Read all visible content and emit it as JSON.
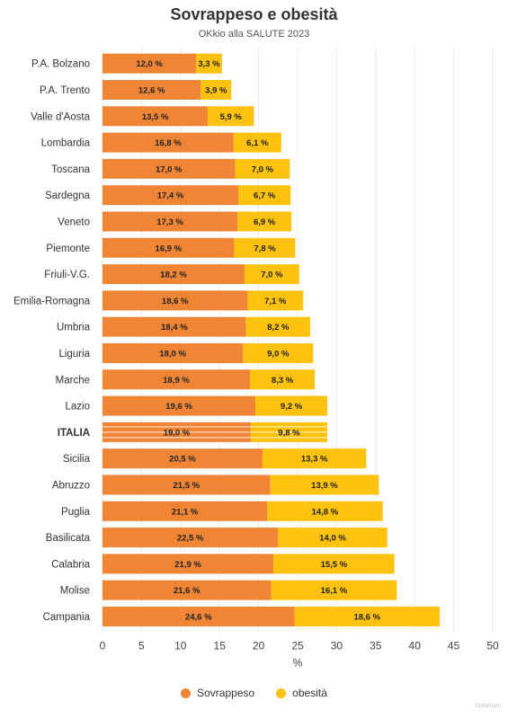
{
  "chart_data": {
    "type": "bar",
    "orientation": "horizontal",
    "stacked": true,
    "title": "Sovrappeso e obesità",
    "subtitle": "OKkio alla SALUTE 2023",
    "xlabel": "%",
    "xlim": [
      0,
      50
    ],
    "xticks": [
      "0",
      "5",
      "10",
      "15",
      "20",
      "25",
      "30",
      "35",
      "40",
      "45",
      "50"
    ],
    "grid": true,
    "legend_position": "bottom",
    "categories": [
      "P.A. Bolzano",
      "P.A. Trento",
      "Valle d'Aosta",
      "Lombardia",
      "Toscana",
      "Sardegna",
      "Veneto",
      "Piemonte",
      "Friuli-V.G.",
      "Emilia-Romagna",
      "Umbria",
      "Liguria",
      "Marche",
      "Lazio",
      "ITALIA",
      "Sicilia",
      "Abruzzo",
      "Puglia",
      "Basilicata",
      "Calabria",
      "Molise",
      "Campania"
    ],
    "highlight_category": "ITALIA",
    "series": [
      {
        "name": "Sovrappeso",
        "color": "#F08536",
        "values": [
          12.0,
          12.6,
          13.5,
          16.8,
          17.0,
          17.4,
          17.3,
          16.9,
          18.2,
          18.6,
          18.4,
          18.0,
          18.9,
          19.6,
          19.0,
          20.5,
          21.5,
          21.1,
          22.5,
          21.9,
          21.6,
          24.6
        ],
        "labels": [
          "12,0 %",
          "12,6 %",
          "13,5 %",
          "16,8 %",
          "17,0 %",
          "17,4 %",
          "17,3 %",
          "16,9 %",
          "18,2 %",
          "18,6 %",
          "18,4 %",
          "18,0 %",
          "18,9 %",
          "19,6 %",
          "19,0 %",
          "20,5 %",
          "21,5 %",
          "21,1 %",
          "22,5 %",
          "21,9 %",
          "21,6 %",
          "24,6 %"
        ]
      },
      {
        "name": "obesità",
        "color": "#FFC20E",
        "values": [
          3.3,
          3.9,
          5.9,
          6.1,
          7.0,
          6.7,
          6.9,
          7.8,
          7.0,
          7.1,
          8.2,
          9.0,
          8.3,
          9.2,
          9.8,
          13.3,
          13.9,
          14.8,
          14.0,
          15.5,
          16.1,
          18.6
        ],
        "labels": [
          "3,3 %",
          "3,9 %",
          "5,9 %",
          "6,1 %",
          "7,0 %",
          "6,7 %",
          "6,9 %",
          "7,8 %",
          "7,0 %",
          "7,1 %",
          "8,2 %",
          "9,0 %",
          "8,3 %",
          "9,2 %",
          "9,8 %",
          "13,3 %",
          "13,9 %",
          "14,8 %",
          "14,0 %",
          "15,5 %",
          "16,1 %",
          "18,6 %"
        ]
      }
    ]
  },
  "credit": "©InfoGram"
}
